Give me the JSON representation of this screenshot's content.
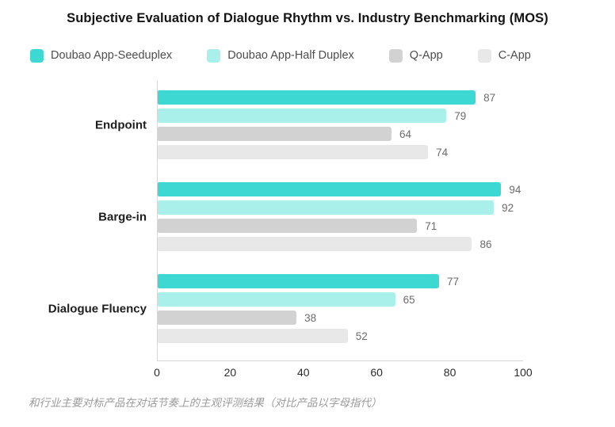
{
  "title": "Subjective Evaluation of Dialogue Rhythm vs. Industry Benchmarking (MOS)",
  "footnote": "和行业主要对标产品在对话节奏上的主观评测结果（对比产品以字母指代）",
  "chart_data": {
    "type": "bar",
    "orientation": "horizontal",
    "title": "Subjective Evaluation of Dialogue Rhythm vs. Industry Benchmarking (MOS)",
    "categories": [
      "Endpoint",
      "Barge-in",
      "Dialogue Fluency"
    ],
    "series": [
      {
        "name": "Doubao App-Seeduplex",
        "color": "#3ED8D2",
        "values": [
          87,
          94,
          77
        ]
      },
      {
        "name": "Doubao App-Half Duplex",
        "color": "#A8F0E9",
        "values": [
          79,
          92,
          65
        ]
      },
      {
        "name": "Q-App",
        "color": "#D2D2D2",
        "values": [
          64,
          71,
          38
        ]
      },
      {
        "name": "C-App",
        "color": "#E8E8E8",
        "values": [
          74,
          86,
          52
        ]
      }
    ],
    "xlim": [
      0,
      100
    ],
    "xticks": [
      0,
      20,
      40,
      60,
      80,
      100
    ],
    "value_labels": true,
    "legend_position": "top",
    "grid": false,
    "axis_color": "#d6d6d6"
  }
}
